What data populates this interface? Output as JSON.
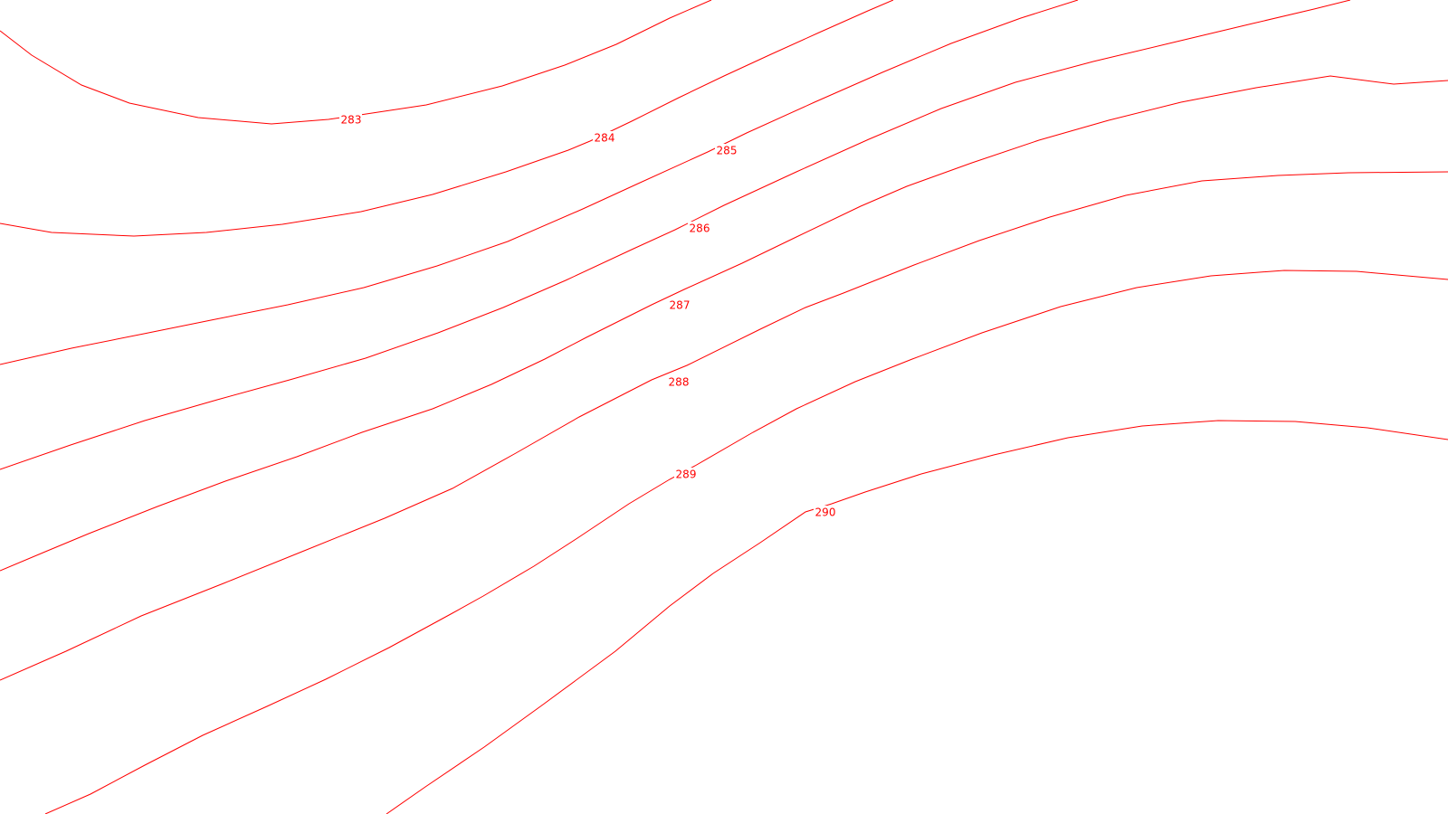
{
  "map": {
    "line_color": "#ff0000",
    "background": "#ffffff",
    "contours": [
      {
        "level": 283,
        "label": "283"
      },
      {
        "level": 284,
        "label": "284"
      },
      {
        "level": 285,
        "label": "285"
      },
      {
        "level": 286,
        "label": "286"
      },
      {
        "level": 287,
        "label": "287"
      },
      {
        "level": 288,
        "label": "288"
      },
      {
        "level": 289,
        "label": "289"
      },
      {
        "level": 290,
        "label": "290"
      }
    ]
  }
}
